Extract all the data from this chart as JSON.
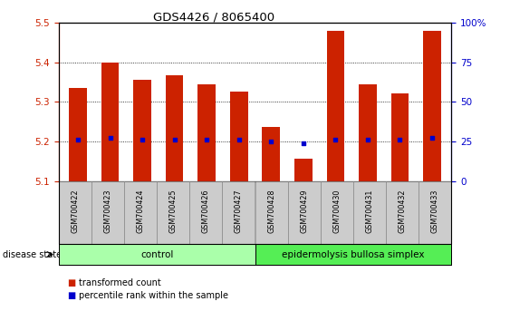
{
  "title": "GDS4426 / 8065400",
  "samples": [
    "GSM700422",
    "GSM700423",
    "GSM700424",
    "GSM700425",
    "GSM700426",
    "GSM700427",
    "GSM700428",
    "GSM700429",
    "GSM700430",
    "GSM700431",
    "GSM700432",
    "GSM700433"
  ],
  "transformed_counts": [
    5.335,
    5.4,
    5.356,
    5.366,
    5.344,
    5.325,
    5.238,
    5.157,
    5.478,
    5.344,
    5.322,
    5.478
  ],
  "percentile_ranks": [
    5.205,
    5.21,
    5.205,
    5.205,
    5.205,
    5.205,
    5.2,
    5.196,
    5.205,
    5.205,
    5.205,
    5.21
  ],
  "bar_bottom": 5.1,
  "bar_color": "#cc2200",
  "dot_color": "#0000cc",
  "ylim_left": [
    5.1,
    5.5
  ],
  "ylim_right": [
    0,
    100
  ],
  "yticks_left": [
    5.1,
    5.2,
    5.3,
    5.4,
    5.5
  ],
  "yticks_right": [
    0,
    25,
    50,
    75,
    100
  ],
  "ytick_labels_right": [
    "0",
    "25",
    "50",
    "75",
    "100%"
  ],
  "groups": [
    {
      "label": "control",
      "start": 0,
      "end": 6,
      "color": "#aaffaa"
    },
    {
      "label": "epidermolysis bullosa simplex",
      "start": 6,
      "end": 12,
      "color": "#55ee55"
    }
  ],
  "disease_state_label": "disease state",
  "legend_items": [
    {
      "color": "#cc2200",
      "label": "transformed count"
    },
    {
      "color": "#0000cc",
      "label": "percentile rank within the sample"
    }
  ],
  "bar_width": 0.55,
  "grid_yticks": [
    5.2,
    5.3,
    5.4
  ]
}
